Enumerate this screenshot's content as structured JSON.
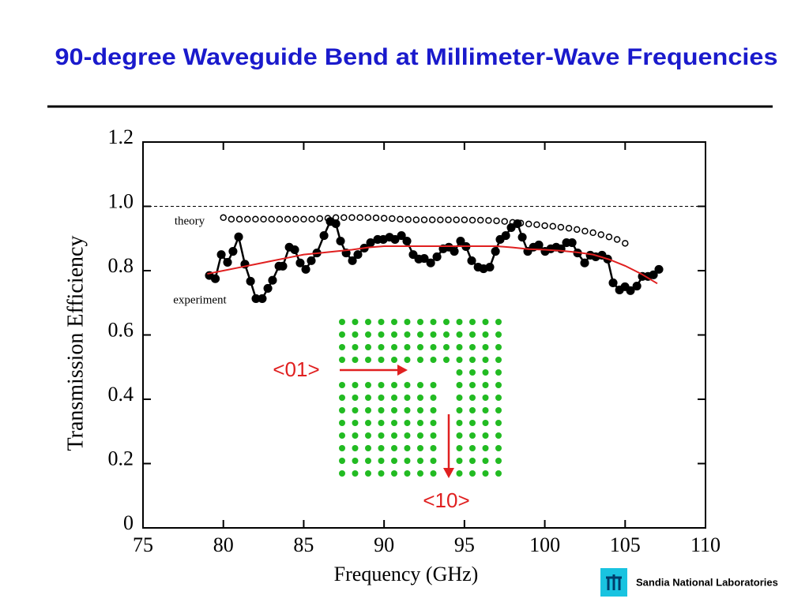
{
  "chart_data": {
    "type": "line",
    "title": "90-degree Waveguide Bend at Millimeter-Wave Frequencies",
    "xlabel": "Frequency (GHz)",
    "ylabel": "Transmission Efficiency",
    "xlim": [
      75,
      110
    ],
    "xticks": [
      75,
      80,
      85,
      90,
      95,
      100,
      105,
      110
    ],
    "ylim": [
      0,
      1.2
    ],
    "yticks": [
      0,
      0.2,
      0.4,
      0.6,
      0.8,
      {
        "value": 1,
        "label": "1.0"
      },
      1.2
    ],
    "hline": 1,
    "annotations": [
      "theory",
      "experiment"
    ],
    "inset_labels": [
      "<01>",
      "<10>"
    ],
    "footer": "Sandia National Laboratories",
    "series": [
      {
        "name": "theory",
        "color": "#000000",
        "marker": "open",
        "x": [
          80,
          80.5,
          81,
          81.5,
          82,
          82.5,
          83,
          83.5,
          84,
          84.5,
          85,
          85.5,
          86,
          86.5,
          87,
          87.5,
          88,
          88.5,
          89,
          89.5,
          90,
          90.5,
          91,
          91.5,
          92,
          92.5,
          93,
          93.5,
          94,
          94.5,
          95,
          95.5,
          96,
          96.5,
          97,
          97.5,
          98,
          98.5,
          99,
          99.5,
          100,
          100.5,
          101,
          101.5,
          102,
          102.5,
          103,
          103.5,
          104,
          104.5,
          105
        ],
        "values": [
          0.965,
          0.96,
          0.96,
          0.96,
          0.96,
          0.96,
          0.96,
          0.96,
          0.96,
          0.96,
          0.96,
          0.96,
          0.962,
          0.963,
          0.965,
          0.965,
          0.965,
          0.965,
          0.965,
          0.964,
          0.963,
          0.962,
          0.96,
          0.959,
          0.958,
          0.958,
          0.958,
          0.958,
          0.958,
          0.958,
          0.958,
          0.957,
          0.957,
          0.956,
          0.955,
          0.953,
          0.95,
          0.948,
          0.945,
          0.943,
          0.94,
          0.938,
          0.935,
          0.932,
          0.928,
          0.923,
          0.918,
          0.912,
          0.905,
          0.897,
          0.885
        ]
      },
      {
        "name": "experiment",
        "color": "#000000",
        "marker": "filled",
        "x": [
          79.13,
          79.5,
          79.87,
          80.26,
          80.6,
          80.95,
          81.34,
          81.69,
          82.03,
          82.42,
          82.77,
          83.06,
          83.46,
          83.7,
          84.1,
          84.44,
          84.78,
          85.13,
          85.47,
          85.82,
          86.26,
          86.65,
          87,
          87.29,
          87.64,
          88.03,
          88.37,
          88.77,
          89.16,
          89.6,
          89.95,
          90.34,
          90.68,
          91.08,
          91.42,
          91.81,
          92.16,
          92.5,
          92.9,
          93.29,
          93.68,
          94.03,
          94.37,
          94.76,
          95.1,
          95.45,
          95.85,
          96.19,
          96.58,
          96.93,
          97.22,
          97.57,
          97.91,
          98.3,
          98.6,
          98.94,
          99.29,
          99.63,
          100.02,
          100.37,
          100.71,
          101.01,
          101.35,
          101.7,
          102.04,
          102.48,
          102.83,
          103.17,
          103.56,
          103.91,
          104.25,
          104.65,
          104.99,
          105.33,
          105.73,
          106.07,
          106.42,
          106.76,
          107.1
        ],
        "values": [
          0.785,
          0.775,
          0.85,
          0.826,
          0.86,
          0.905,
          0.82,
          0.767,
          0.713,
          0.713,
          0.745,
          0.77,
          0.814,
          0.814,
          0.873,
          0.865,
          0.824,
          0.804,
          0.831,
          0.855,
          0.909,
          0.953,
          0.946,
          0.892,
          0.855,
          0.831,
          0.85,
          0.87,
          0.887,
          0.897,
          0.897,
          0.904,
          0.897,
          0.909,
          0.892,
          0.85,
          0.836,
          0.838,
          0.824,
          0.843,
          0.868,
          0.873,
          0.86,
          0.892,
          0.875,
          0.831,
          0.811,
          0.806,
          0.811,
          0.86,
          0.897,
          0.909,
          0.934,
          0.946,
          0.904,
          0.86,
          0.873,
          0.88,
          0.86,
          0.868,
          0.873,
          0.868,
          0.887,
          0.887,
          0.855,
          0.824,
          0.848,
          0.843,
          0.848,
          0.836,
          0.762,
          0.74,
          0.75,
          0.738,
          0.752,
          0.782,
          0.782,
          0.787,
          0.804
        ]
      },
      {
        "color": "#e02020",
        "marker": "none",
        "x": [
          79,
          80,
          81,
          82,
          83,
          84,
          85,
          86,
          87,
          88,
          89,
          90,
          91,
          92,
          93,
          94,
          95,
          96,
          97,
          98,
          99,
          100,
          101,
          102,
          103,
          104,
          105,
          106,
          107
        ],
        "values": [
          0.79,
          0.8,
          0.81,
          0.82,
          0.83,
          0.84,
          0.85,
          0.855,
          0.86,
          0.865,
          0.872,
          0.876,
          0.876,
          0.876,
          0.876,
          0.876,
          0.876,
          0.876,
          0.876,
          0.872,
          0.867,
          0.865,
          0.862,
          0.857,
          0.85,
          0.835,
          0.815,
          0.79,
          0.76
        ]
      }
    ]
  }
}
